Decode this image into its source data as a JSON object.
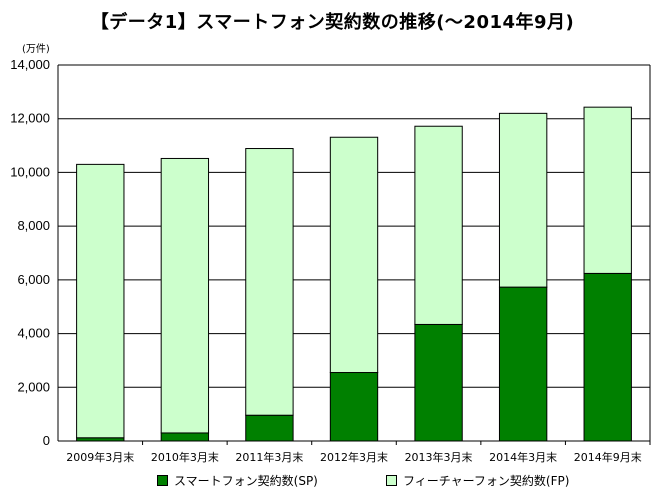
{
  "title": "【データ1】スマートフォン契約数の推移(～2014年9月)",
  "unit": "(万件)",
  "colors": {
    "sp": "#008000",
    "fp": "#ccffcc",
    "stroke": "#000000",
    "grid": "#000000"
  },
  "chart_data": {
    "type": "bar",
    "stacked": true,
    "title": "【データ1】スマートフォン契約数の推移(～2014年9月)",
    "ylabel": "(万件)",
    "xlabel": "",
    "ylim": [
      0,
      14000
    ],
    "yticks": [
      "0",
      "2,000",
      "4,000",
      "6,000",
      "8,000",
      "10,000",
      "12,000",
      "14,000"
    ],
    "grid": true,
    "legend_position": "bottom",
    "categories": [
      "2009年3月末",
      "2010年3月末",
      "2011年3月末",
      "2012年3月末",
      "2013年3月末",
      "2014年3月末",
      "2014年9月末"
    ],
    "series": [
      {
        "name": "スマートフォン契約数(SP)",
        "values": [
          120,
          300,
          960,
          2550,
          4340,
          5730,
          6240
        ]
      },
      {
        "name": "フィーチャーフォン契約数(FP)",
        "values": [
          10180,
          10220,
          9930,
          8760,
          7380,
          6470,
          6190
        ]
      }
    ]
  }
}
